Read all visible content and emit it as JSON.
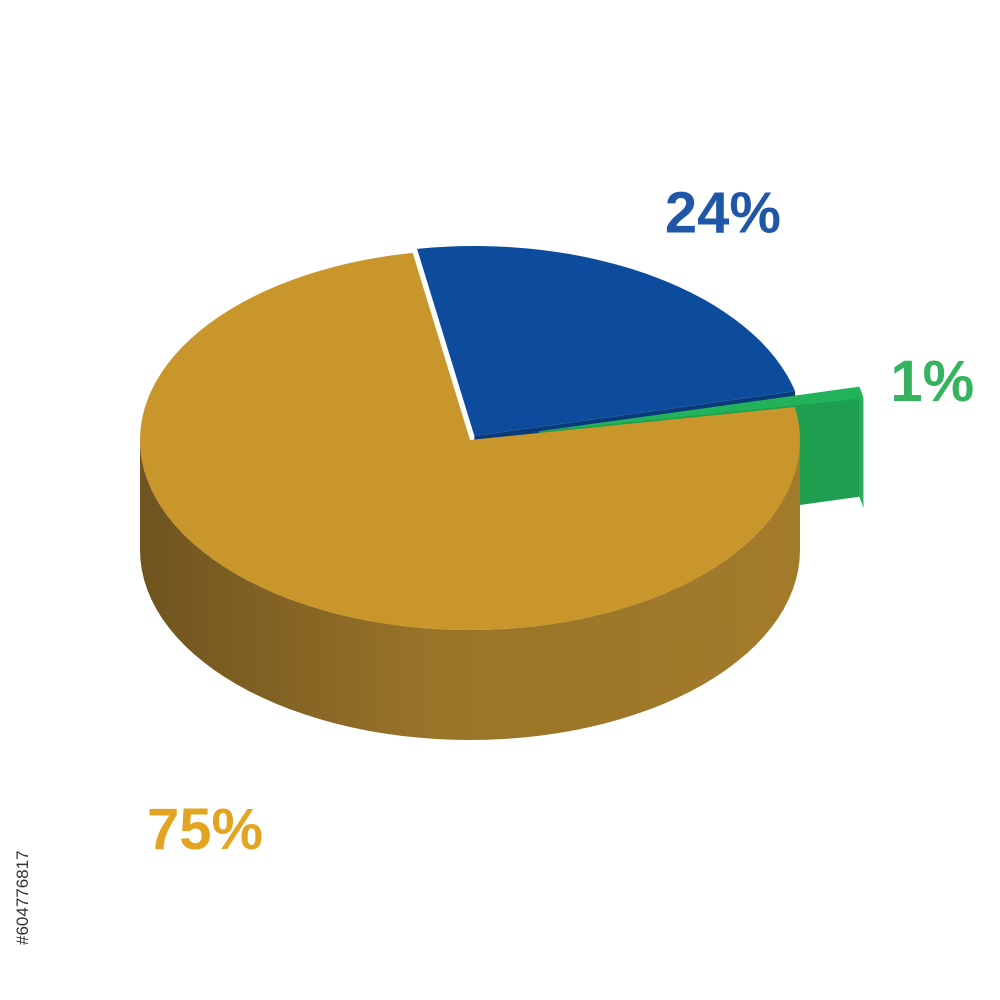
{
  "chart_data": {
    "type": "pie3d",
    "values": [
      24,
      1,
      75
    ],
    "value_labels": [
      "24%",
      "1%",
      "75%"
    ],
    "colors": [
      "#0d4c9c",
      "#22b35a",
      "#c9962b"
    ],
    "label_colors": [
      "#1f56a6",
      "#35b35f",
      "#e3a521"
    ]
  },
  "stock_id": "#604776817"
}
